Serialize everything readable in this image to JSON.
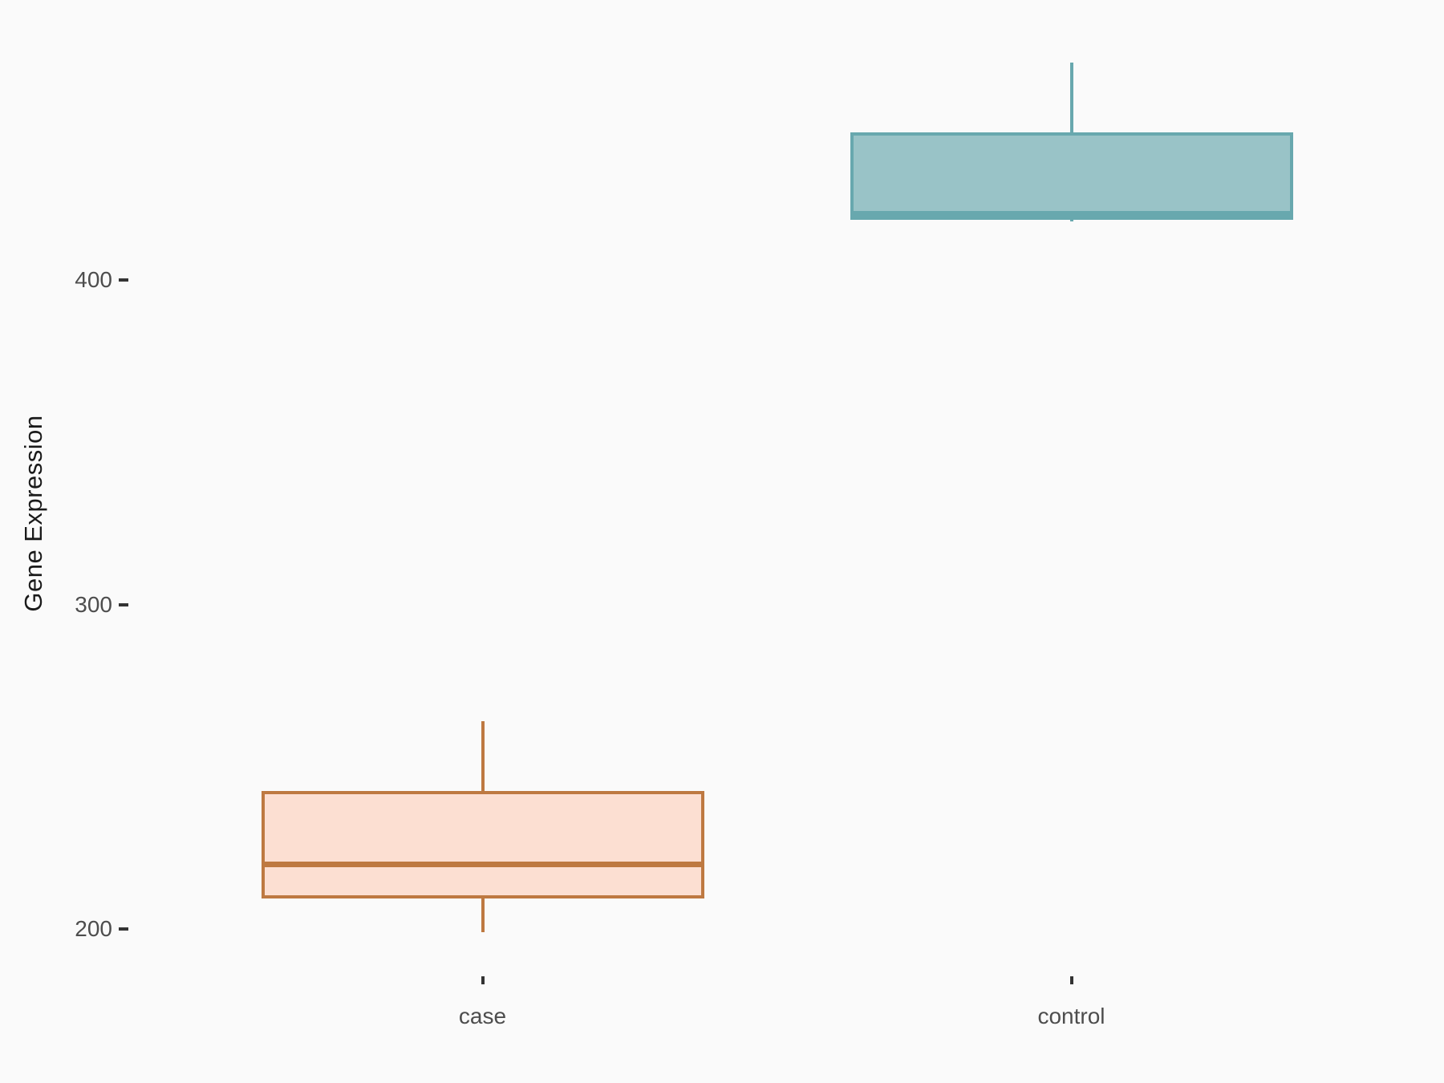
{
  "chart_data": {
    "type": "boxplot",
    "title": "",
    "xlabel": "",
    "ylabel": "Gene Expression",
    "categories": [
      "case",
      "control"
    ],
    "y_ticks": [
      200,
      300,
      400
    ],
    "ylim": [
      183,
      484
    ],
    "grid": false,
    "legend": false,
    "series": [
      {
        "name": "case",
        "whisker_min": 199,
        "q1": 210,
        "median": 220,
        "q3": 242,
        "whisker_max": 264,
        "fill": "#FCDFD2",
        "stroke": "#BE7941"
      },
      {
        "name": "control",
        "whisker_min": 418,
        "q1": 419,
        "median": 420.5,
        "q3": 445,
        "whisker_max": 467,
        "fill": "#99C3C7",
        "stroke": "#68A8AE"
      }
    ]
  },
  "colors": {
    "background": "#FAFAFA",
    "tick_mark": "#333333",
    "tick_label_text": "#4D4D4D",
    "axis_title_text": "#1A1A1A"
  }
}
